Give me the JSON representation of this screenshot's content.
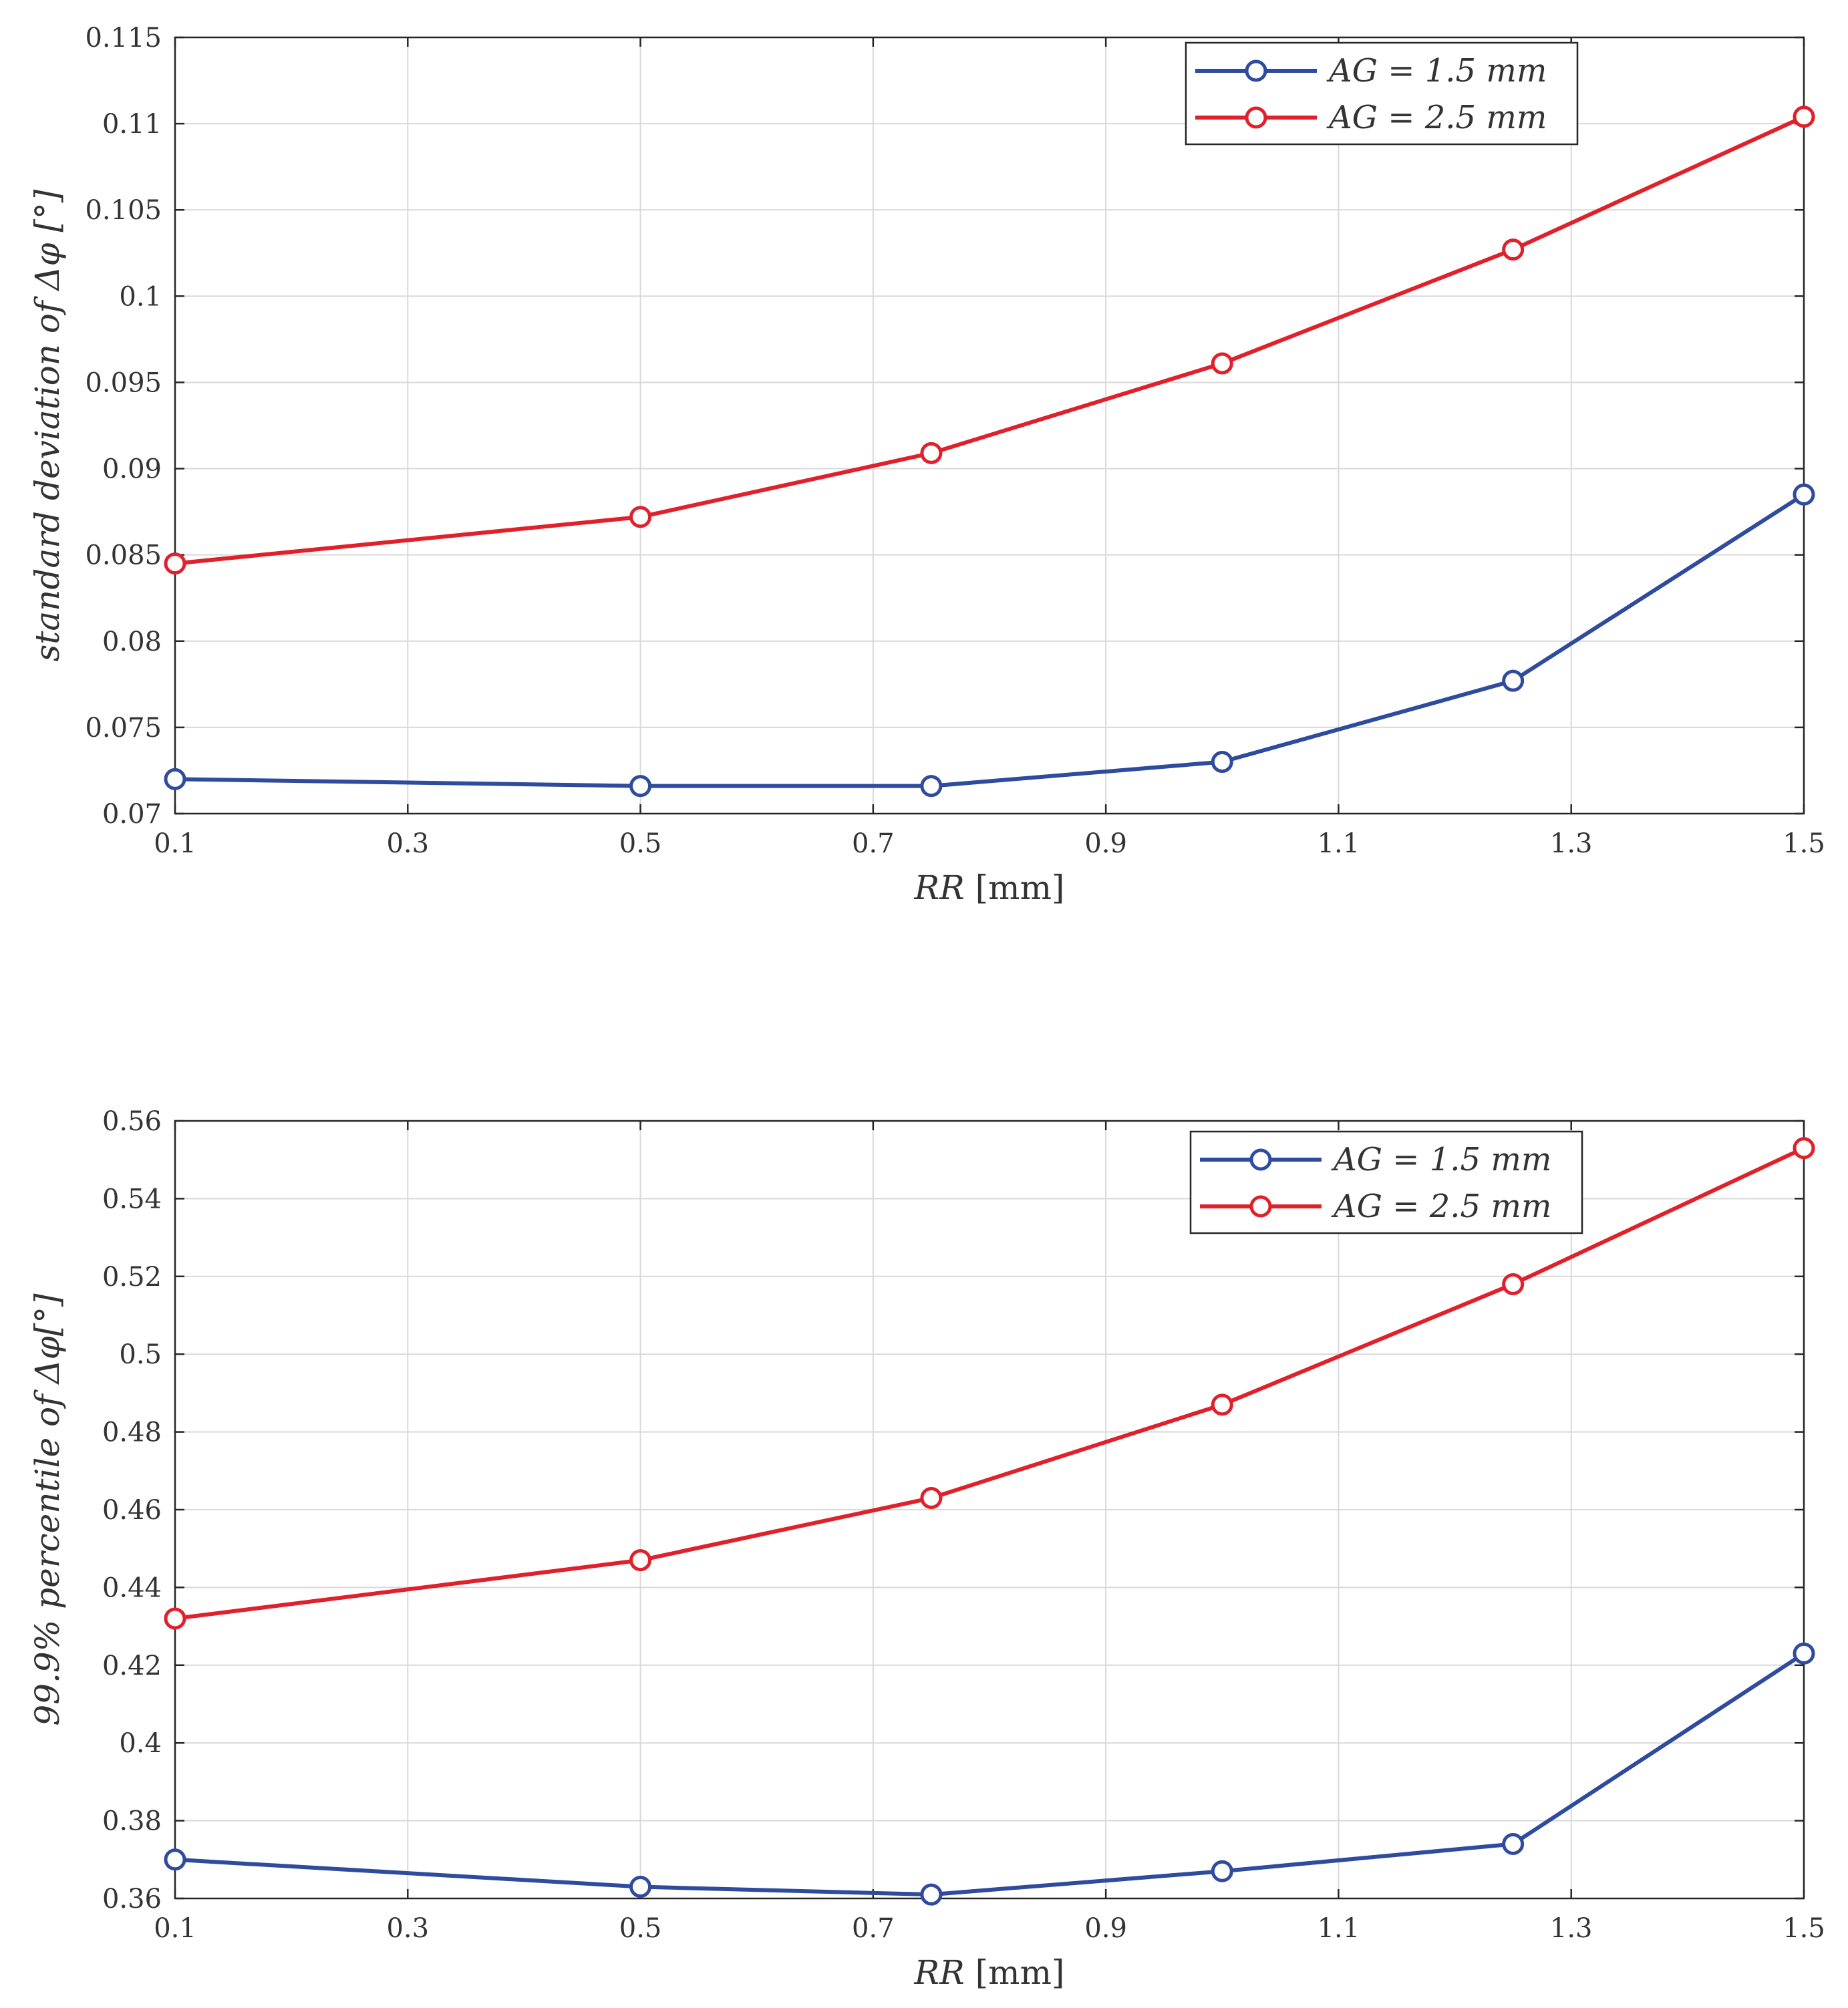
{
  "chart_data": [
    {
      "type": "line",
      "x": [
        0.1,
        0.5,
        0.75,
        1.0,
        1.25,
        1.5
      ],
      "xlim": [
        0.1,
        1.5
      ],
      "xticks": [
        "0.1",
        "0.3",
        "0.5",
        "0.7",
        "0.9",
        "1.1",
        "1.3",
        "1.5"
      ],
      "ylim": [
        0.07,
        0.115
      ],
      "yticks": [
        "0.07",
        "0.075",
        "0.08",
        "0.085",
        "0.09",
        "0.095",
        "0.1",
        "0.105",
        "0.11",
        "0.115"
      ],
      "xlabel": {
        "var": "RR",
        "unit": "[mm]"
      },
      "ylabel": "standard deviation of Δφ [°]",
      "grid": true,
      "legend_position": "top-right",
      "series": [
        {
          "name": "AG = 1.5 mm",
          "color": "#2f4b9e",
          "values": [
            0.072,
            0.0716,
            0.0716,
            0.073,
            0.0777,
            0.0885
          ]
        },
        {
          "name": "AG = 2.5 mm",
          "color": "#e0202a",
          "values": [
            0.0845,
            0.0872,
            0.0909,
            0.0961,
            0.1027,
            0.1104
          ]
        }
      ]
    },
    {
      "type": "line",
      "x": [
        0.1,
        0.5,
        0.75,
        1.0,
        1.25,
        1.5
      ],
      "xlim": [
        0.1,
        1.5
      ],
      "xticks": [
        "0.1",
        "0.3",
        "0.5",
        "0.7",
        "0.9",
        "1.1",
        "1.3",
        "1.5"
      ],
      "ylim": [
        0.36,
        0.56
      ],
      "yticks": [
        "0.36",
        "0.38",
        "0.4",
        "0.42",
        "0.44",
        "0.46",
        "0.48",
        "0.5",
        "0.52",
        "0.54",
        "0.56"
      ],
      "xlabel": {
        "var": "RR",
        "unit": "[mm]"
      },
      "ylabel": "99.9% percentile of Δφ[°]",
      "grid": true,
      "legend_position": "top-right",
      "series": [
        {
          "name": "AG = 1.5 mm",
          "color": "#2f4b9e",
          "values": [
            0.37,
            0.363,
            0.361,
            0.367,
            0.374,
            0.423
          ]
        },
        {
          "name": "AG = 2.5 mm",
          "color": "#e0202a",
          "values": [
            0.432,
            0.447,
            0.463,
            0.487,
            0.518,
            0.553
          ]
        }
      ]
    }
  ]
}
